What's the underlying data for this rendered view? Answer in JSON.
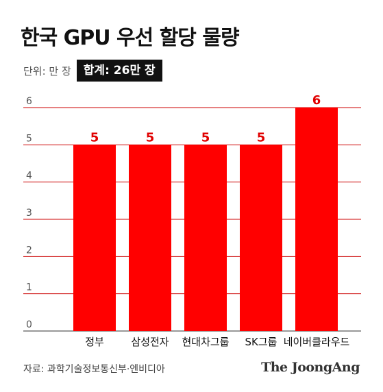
{
  "title": "한국 GPU 우선 할당 물량",
  "unit_label": "단위: 만 장",
  "total_label": "합계: 26만 장",
  "source": "자료: 과학기술정보통신부·엔비디아",
  "brand": "The JoongAng",
  "chart_data": {
    "type": "bar",
    "categories": [
      "정부",
      "삼성전자",
      "현대차그룹",
      "SK그룹",
      "네이버클라우드"
    ],
    "values": [
      5,
      5,
      5,
      5,
      6
    ],
    "value_labels": [
      "5",
      "5",
      "5",
      "5",
      "6"
    ],
    "yticks": [
      "0",
      "1",
      "2",
      "3",
      "4",
      "5",
      "6"
    ],
    "ylim": [
      0,
      6
    ],
    "grid": true,
    "bar_color": "#ff0000",
    "value_label_color": "#e10000",
    "grid_color": "#cc0000"
  }
}
